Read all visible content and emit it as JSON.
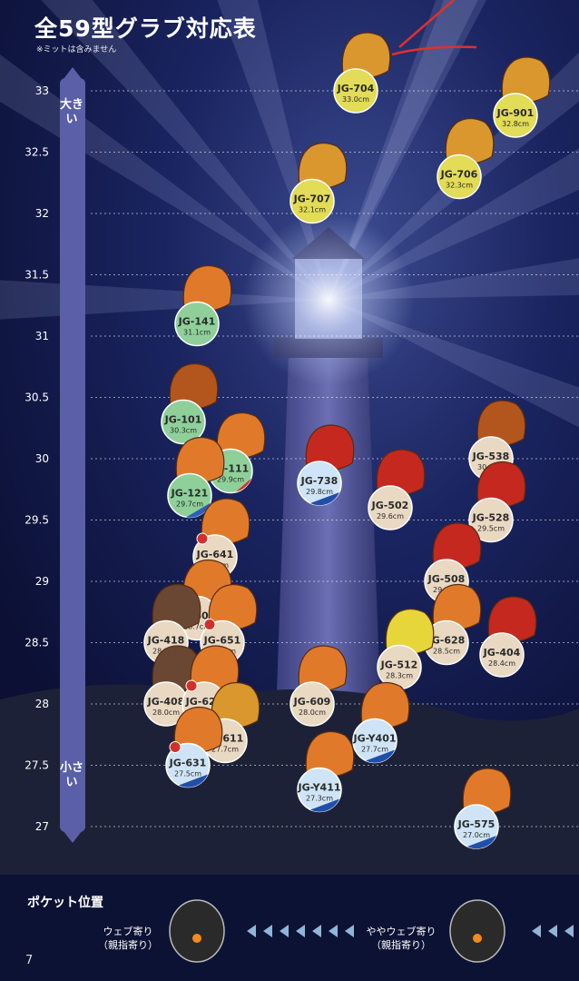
{
  "title": "全59型グラブ対応表",
  "note": "※ミットは含みません",
  "scale_labels": {
    "big": "大きい",
    "small": "小さい"
  },
  "pocket": {
    "title": "ポケット位置",
    "left_label_1": "ウェブ寄り",
    "left_label_2": "（親指寄り）",
    "right_label_1": "ややウェブ寄り",
    "right_label_2": "（親指寄り）"
  },
  "page_number": "7",
  "colors": {
    "background": "#151c4a",
    "scale_bar": "#5a5fa8",
    "arrow": "#8fb6d8",
    "annotation": "#e0302a"
  },
  "chart_data": {
    "type": "scatter",
    "title": "全59型グラブ対応表",
    "ylabel": "",
    "ylim": [
      27,
      33
    ],
    "yticks": [
      33,
      32.5,
      32,
      31.5,
      31,
      30.5,
      30,
      29.5,
      29,
      28.5,
      28,
      27.5,
      27
    ],
    "grid": true,
    "points": [
      {
        "model": "JG-704",
        "size_label": "33.0cm",
        "value": 33.0,
        "ball": "yellow",
        "glove": "tan"
      },
      {
        "model": "JG-901",
        "size_label": "32.8cm",
        "value": 32.8,
        "ball": "yellow",
        "glove": "tan"
      },
      {
        "model": "JG-706",
        "size_label": "32.3cm",
        "value": 32.3,
        "ball": "yellow",
        "glove": "tan"
      },
      {
        "model": "JG-707",
        "size_label": "32.1cm",
        "value": 32.1,
        "ball": "yellow",
        "glove": "tan"
      },
      {
        "model": "JG-141",
        "size_label": "31.1cm",
        "value": 31.1,
        "ball": "green",
        "glove": "orange"
      },
      {
        "model": "JG-101",
        "size_label": "30.3cm",
        "value": 30.3,
        "ball": "green",
        "glove": "brown"
      },
      {
        "model": "JG-111",
        "size_label": "29.9cm",
        "value": 29.9,
        "ball": "green-red",
        "glove": "orange"
      },
      {
        "model": "JG-738",
        "size_label": "29.8cm",
        "value": 29.8,
        "ball": "blue",
        "glove": "red"
      },
      {
        "model": "JG-121",
        "size_label": "29.7cm",
        "value": 29.7,
        "ball": "green-blue",
        "glove": "orange"
      },
      {
        "model": "JG-502",
        "size_label": "29.6cm",
        "value": 29.6,
        "ball": "beige",
        "glove": "red"
      },
      {
        "model": "JG-538",
        "size_label": "30.0cm",
        "value": 30.0,
        "ball": "beige",
        "glove": "brown"
      },
      {
        "model": "JG-528",
        "size_label": "29.5cm",
        "value": 29.5,
        "ball": "beige",
        "glove": "red"
      },
      {
        "model": "JG-641",
        "size_label": "29.2cm",
        "value": 29.2,
        "ball": "beige-star",
        "glove": "orange"
      },
      {
        "model": "JG-508",
        "size_label": "29.0cm",
        "value": 29.0,
        "ball": "beige",
        "glove": "red"
      },
      {
        "model": "JG-601",
        "size_label": "28.7cm",
        "value": 28.7,
        "ball": "beige-star",
        "glove": "orange"
      },
      {
        "model": "JG-418",
        "size_label": "28.5cm",
        "value": 28.5,
        "ball": "beige",
        "glove": "dark-brown"
      },
      {
        "model": "JG-651",
        "size_label": "28.5cm",
        "value": 28.5,
        "ball": "beige-star",
        "glove": "orange"
      },
      {
        "model": "JG-628",
        "size_label": "28.5cm",
        "value": 28.5,
        "ball": "beige",
        "glove": "orange"
      },
      {
        "model": "JG-404",
        "size_label": "28.4cm",
        "value": 28.4,
        "ball": "beige",
        "glove": "red"
      },
      {
        "model": "JG-512",
        "size_label": "28.3cm",
        "value": 28.3,
        "ball": "beige",
        "glove": "yellow"
      },
      {
        "model": "JG-408",
        "size_label": "28.0cm",
        "value": 28.0,
        "ball": "beige",
        "glove": "dark-brown"
      },
      {
        "model": "JG-621",
        "size_label": "28.0cm",
        "value": 28.0,
        "ball": "beige-red-star",
        "glove": "orange"
      },
      {
        "model": "JG-609",
        "size_label": "28.0cm",
        "value": 28.0,
        "ball": "beige",
        "glove": "orange"
      },
      {
        "model": "JG-611",
        "size_label": "27.7cm",
        "value": 27.7,
        "ball": "beige-star",
        "glove": "tan"
      },
      {
        "model": "JG-Y401",
        "size_label": "27.7cm",
        "value": 27.7,
        "ball": "blue",
        "glove": "orange"
      },
      {
        "model": "JG-631",
        "size_label": "27.5cm",
        "value": 27.5,
        "ball": "blue-star",
        "glove": "orange"
      },
      {
        "model": "JG-Y411",
        "size_label": "27.3cm",
        "value": 27.3,
        "ball": "blue",
        "glove": "orange"
      },
      {
        "model": "JG-575",
        "size_label": "27.0cm",
        "value": 27.0,
        "ball": "blue",
        "glove": "orange"
      }
    ]
  }
}
